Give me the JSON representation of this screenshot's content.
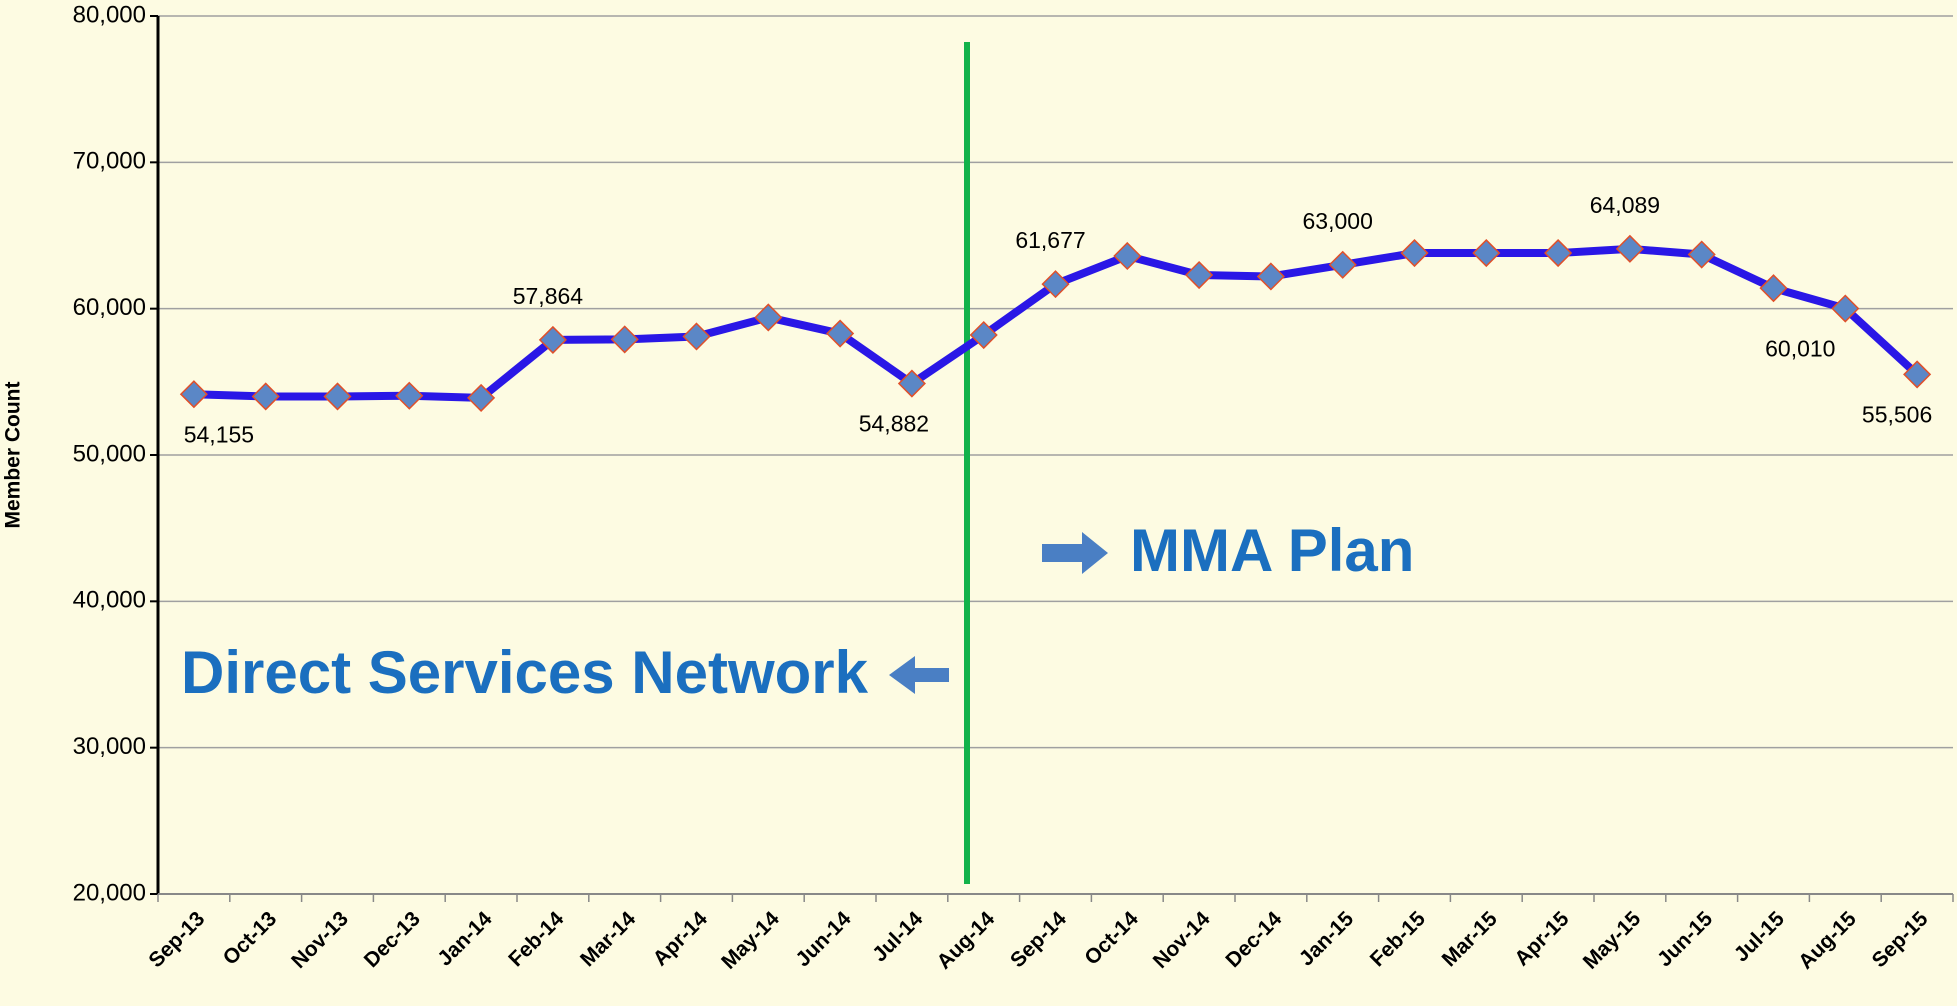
{
  "chart_data": {
    "type": "line",
    "y_label": "Member Count",
    "categories": [
      "Sep-13",
      "Oct-13",
      "Nov-13",
      "Dec-13",
      "Jan-14",
      "Feb-14",
      "Mar-14",
      "Apr-14",
      "May-14",
      "Jun-14",
      "Jul-14",
      "Aug-14",
      "Sep-14",
      "Oct-14",
      "Nov-14",
      "Dec-14",
      "Jan-15",
      "Feb-15",
      "Mar-15",
      "Apr-15",
      "May-15",
      "Jun-15",
      "Jul-15",
      "Aug-15",
      "Sep-15"
    ],
    "series": [
      {
        "name": "Member Count",
        "color": "#2a17e6",
        "marker_color": "#5b87c6",
        "values": [
          54155,
          54000,
          54000,
          54050,
          53900,
          57864,
          57900,
          58100,
          59400,
          58300,
          54882,
          58200,
          61677,
          63600,
          62300,
          62200,
          63000,
          63800,
          63800,
          63800,
          64089,
          63700,
          61400,
          60010,
          55506
        ],
        "value_labels": [
          "54,155",
          null,
          null,
          null,
          null,
          "57,864",
          null,
          null,
          null,
          null,
          "54,882",
          null,
          "61,677",
          null,
          null,
          null,
          "63,000",
          null,
          null,
          null,
          "64,089",
          null,
          null,
          "60,010",
          "55,506"
        ]
      }
    ],
    "ylim": [
      20000,
      80000
    ],
    "yticks": [
      {
        "value": 20000,
        "label": "20,000"
      },
      {
        "value": 30000,
        "label": "30,000"
      },
      {
        "value": 40000,
        "label": "40,000"
      },
      {
        "value": 50000,
        "label": "50,000"
      },
      {
        "value": 60000,
        "label": "60,000"
      },
      {
        "value": 70000,
        "label": "70,000"
      },
      {
        "value": 80000,
        "label": "80,000"
      }
    ],
    "grid": true,
    "annotations": [
      "MMA Plan",
      "Direct Services Network"
    ]
  }
}
